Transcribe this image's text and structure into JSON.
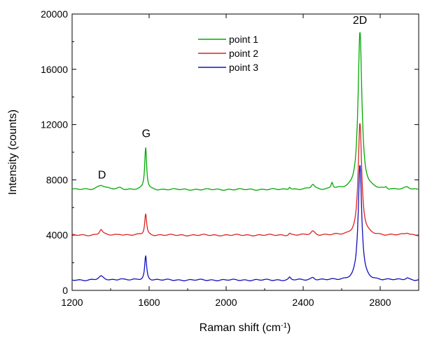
{
  "chart_data": {
    "type": "line",
    "title": "",
    "xlabel": "Raman shift (cm",
    "xlabel_sup": "-1",
    "xlabel_close": ")",
    "ylabel": "Intensity (counts)",
    "xlim": [
      1200,
      3000
    ],
    "ylim": [
      0,
      20000
    ],
    "xticks": [
      1200,
      1600,
      2000,
      2400,
      2800
    ],
    "yticks": [
      0,
      4000,
      8000,
      12000,
      16000,
      20000
    ],
    "grid": false,
    "legend_position": "top-center",
    "annotations": [
      {
        "text": "D",
        "x": 1355,
        "y": 8100
      },
      {
        "text": "G",
        "x": 1585,
        "y": 11100
      },
      {
        "text": "2D",
        "x": 2695,
        "y": 19300
      }
    ],
    "series": [
      {
        "name": "point 1",
        "color": "#00aa00",
        "baseline": 7300,
        "peaks": [
          {
            "center": 1350,
            "height": 320,
            "width": 45
          },
          {
            "center": 1450,
            "height": 120,
            "width": 30
          },
          {
            "center": 1582,
            "height": 3050,
            "width": 12
          },
          {
            "center": 2330,
            "height": 200,
            "width": 12
          },
          {
            "center": 2450,
            "height": 350,
            "width": 22
          },
          {
            "center": 2550,
            "height": 460,
            "width": 12
          },
          {
            "center": 2695,
            "height": 11400,
            "width": 24
          },
          {
            "center": 2830,
            "height": 150,
            "width": 12
          },
          {
            "center": 2940,
            "height": 150,
            "width": 25
          }
        ]
      },
      {
        "name": "point 2",
        "color": "#dd2222",
        "baseline": 4000,
        "peaks": [
          {
            "center": 1350,
            "height": 400,
            "width": 20
          },
          {
            "center": 1450,
            "height": 80,
            "width": 30
          },
          {
            "center": 1582,
            "height": 1550,
            "width": 12
          },
          {
            "center": 2330,
            "height": 130,
            "width": 12
          },
          {
            "center": 2450,
            "height": 280,
            "width": 25
          },
          {
            "center": 2695,
            "height": 8100,
            "width": 22
          },
          {
            "center": 2940,
            "height": 150,
            "width": 25
          }
        ]
      },
      {
        "name": "point 3",
        "color": "#1010c0",
        "baseline": 750,
        "peaks": [
          {
            "center": 1350,
            "height": 250,
            "width": 30
          },
          {
            "center": 1450,
            "height": 100,
            "width": 30
          },
          {
            "center": 1582,
            "height": 1750,
            "width": 12
          },
          {
            "center": 2330,
            "height": 180,
            "width": 12
          },
          {
            "center": 2450,
            "height": 180,
            "width": 25
          },
          {
            "center": 2695,
            "height": 8350,
            "width": 22
          },
          {
            "center": 2940,
            "height": 150,
            "width": 25
          }
        ]
      }
    ]
  }
}
